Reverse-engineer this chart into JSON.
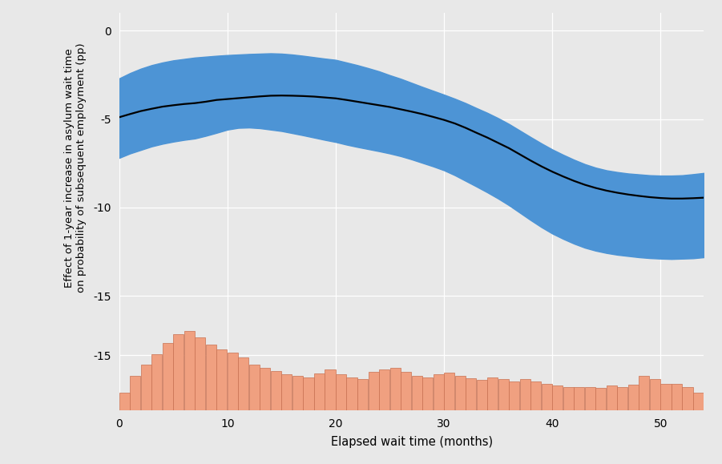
{
  "xlabel": "Elapsed wait time (months)",
  "ylabel": "Effect of 1-year increase in asylum wait time\non probability of subsequent employment (pp)",
  "x_min": 0,
  "x_max": 54,
  "y_main_min": -16.5,
  "y_main_max": 1.0,
  "bg_color": "#E8E8E8",
  "grid_color": "#FFFFFF",
  "band_color": "#4D94D5",
  "line_color": "#000000",
  "hist_color": "#F0A080",
  "yticks_main": [
    0,
    -5,
    -10,
    -15
  ],
  "xticks": [
    0,
    10,
    20,
    30,
    40,
    50
  ],
  "main_line_x": [
    0,
    1,
    2,
    3,
    4,
    5,
    6,
    7,
    8,
    9,
    10,
    11,
    12,
    13,
    14,
    15,
    16,
    17,
    18,
    19,
    20,
    21,
    22,
    23,
    24,
    25,
    26,
    27,
    28,
    29,
    30,
    31,
    32,
    33,
    34,
    35,
    36,
    37,
    38,
    39,
    40,
    41,
    42,
    43,
    44,
    45,
    46,
    47,
    48,
    49,
    50,
    51,
    52,
    53,
    54
  ],
  "main_line_y": [
    -4.9,
    -4.72,
    -4.55,
    -4.42,
    -4.3,
    -4.22,
    -4.15,
    -4.1,
    -4.02,
    -3.92,
    -3.87,
    -3.82,
    -3.77,
    -3.72,
    -3.68,
    -3.67,
    -3.68,
    -3.7,
    -3.73,
    -3.78,
    -3.83,
    -3.92,
    -4.02,
    -4.12,
    -4.22,
    -4.32,
    -4.45,
    -4.58,
    -4.72,
    -4.88,
    -5.05,
    -5.25,
    -5.5,
    -5.78,
    -6.05,
    -6.35,
    -6.65,
    -7.0,
    -7.35,
    -7.68,
    -7.98,
    -8.25,
    -8.5,
    -8.72,
    -8.9,
    -9.05,
    -9.17,
    -9.27,
    -9.35,
    -9.42,
    -9.47,
    -9.5,
    -9.5,
    -9.48,
    -9.45
  ],
  "upper_ci_y": [
    -2.7,
    -2.4,
    -2.15,
    -1.95,
    -1.8,
    -1.68,
    -1.6,
    -1.52,
    -1.47,
    -1.42,
    -1.38,
    -1.35,
    -1.32,
    -1.3,
    -1.28,
    -1.3,
    -1.35,
    -1.42,
    -1.5,
    -1.58,
    -1.65,
    -1.8,
    -1.95,
    -2.12,
    -2.3,
    -2.52,
    -2.72,
    -2.95,
    -3.18,
    -3.4,
    -3.62,
    -3.85,
    -4.1,
    -4.38,
    -4.65,
    -4.95,
    -5.28,
    -5.65,
    -6.02,
    -6.38,
    -6.72,
    -7.02,
    -7.3,
    -7.55,
    -7.75,
    -7.9,
    -8.0,
    -8.08,
    -8.13,
    -8.18,
    -8.2,
    -8.2,
    -8.18,
    -8.12,
    -8.05
  ],
  "lower_ci_y": [
    -7.2,
    -6.95,
    -6.75,
    -6.55,
    -6.4,
    -6.28,
    -6.18,
    -6.1,
    -5.95,
    -5.78,
    -5.6,
    -5.5,
    -5.48,
    -5.52,
    -5.6,
    -5.68,
    -5.8,
    -5.92,
    -6.05,
    -6.18,
    -6.3,
    -6.45,
    -6.58,
    -6.7,
    -6.82,
    -6.95,
    -7.1,
    -7.28,
    -7.48,
    -7.68,
    -7.9,
    -8.18,
    -8.5,
    -8.82,
    -9.15,
    -9.5,
    -9.88,
    -10.3,
    -10.72,
    -11.12,
    -11.48,
    -11.78,
    -12.05,
    -12.28,
    -12.45,
    -12.58,
    -12.68,
    -12.75,
    -12.82,
    -12.87,
    -12.9,
    -12.92,
    -12.9,
    -12.88,
    -12.82
  ],
  "hist_heights": [
    55,
    105,
    140,
    170,
    205,
    230,
    240,
    220,
    200,
    185,
    175,
    160,
    140,
    130,
    120,
    110,
    105,
    100,
    112,
    125,
    110,
    100,
    95,
    118,
    125,
    130,
    118,
    105,
    100,
    110,
    115,
    105,
    98,
    92,
    100,
    95,
    88,
    95,
    88,
    82,
    75,
    72,
    70,
    72,
    68,
    75,
    70,
    78,
    105,
    95,
    82,
    80,
    72,
    55
  ]
}
